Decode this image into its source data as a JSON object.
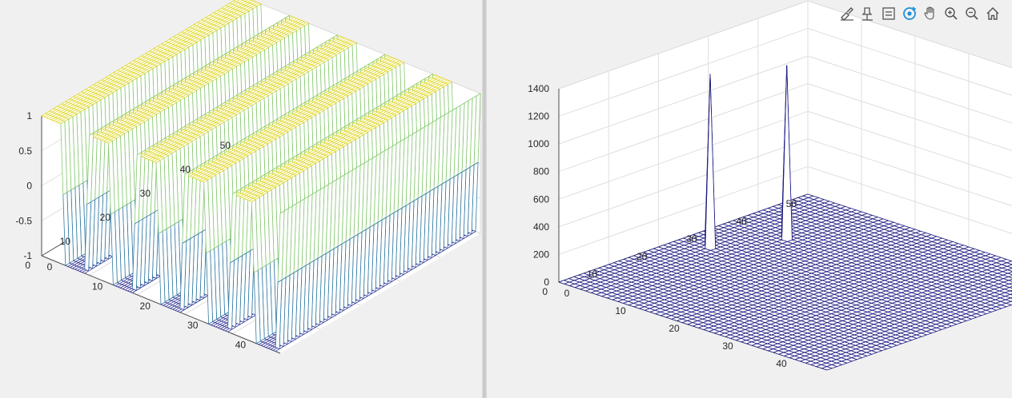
{
  "toolbar": {
    "icons": [
      "brush-icon",
      "data-tips-icon",
      "legend-icon",
      "rotate-3d-icon",
      "pan-icon",
      "zoom-in-icon",
      "zoom-out-icon",
      "home-icon"
    ]
  },
  "colors": {
    "axis_bg": "#ffffff",
    "figure_bg": "#f0f0f0",
    "grid": "#dedede",
    "axis_line": "#4d4d4d",
    "mesh_right": "#1c1a80",
    "mesh_low": "#3b3b9a",
    "mesh_mid": "#2bb8ad",
    "mesh_high": "#e0d832",
    "accent_rotate": "#1e8fd8"
  },
  "chart_data": [
    {
      "type": "mesh",
      "title": "",
      "xlabel": "",
      "ylabel": "",
      "zlabel": "",
      "x_range": [
        0,
        50
      ],
      "y_range": [
        0,
        50
      ],
      "z_range": [
        -1,
        1
      ],
      "x_ticks": [
        "0",
        "10",
        "20",
        "30",
        "40"
      ],
      "y_ticks": [
        "0",
        "10",
        "20",
        "30",
        "40",
        "50"
      ],
      "z_ticks": [
        "-1",
        "-0.5",
        "0",
        "0.5",
        "1"
      ],
      "x_tick_values": [
        0,
        10,
        20,
        30,
        40
      ],
      "y_tick_values": [
        0,
        10,
        20,
        30,
        40,
        50
      ],
      "z_tick_values": [
        -1,
        -0.5,
        0,
        0.5,
        1
      ],
      "surface": "z = square wave along x, constant along y",
      "x_period": 10,
      "z_levels": [
        -1,
        0,
        1
      ],
      "wave_count": 5,
      "colormap": "parula",
      "grid": true
    },
    {
      "type": "mesh",
      "title": "",
      "xlabel": "",
      "ylabel": "",
      "zlabel": "",
      "x_range": [
        0,
        50
      ],
      "y_range": [
        0,
        50
      ],
      "z_range": [
        0,
        1400
      ],
      "x_ticks": [
        "0",
        "10",
        "20",
        "30",
        "40"
      ],
      "y_ticks": [
        "0",
        "10",
        "20",
        "30",
        "40",
        "50"
      ],
      "z_ticks": [
        "0",
        "200",
        "400",
        "600",
        "800",
        "1000",
        "1200",
        "1400"
      ],
      "x_tick_values": [
        0,
        10,
        20,
        30,
        40
      ],
      "y_tick_values": [
        0,
        10,
        20,
        30,
        40,
        50
      ],
      "z_tick_values": [
        0,
        200,
        400,
        600,
        800,
        1000,
        1200,
        1400
      ],
      "baseline": 0,
      "peaks": [
        {
          "x": 5,
          "y": 25,
          "z": 1250
        },
        {
          "x": 10,
          "y": 35,
          "z": 1250
        }
      ],
      "grid": true
    }
  ]
}
